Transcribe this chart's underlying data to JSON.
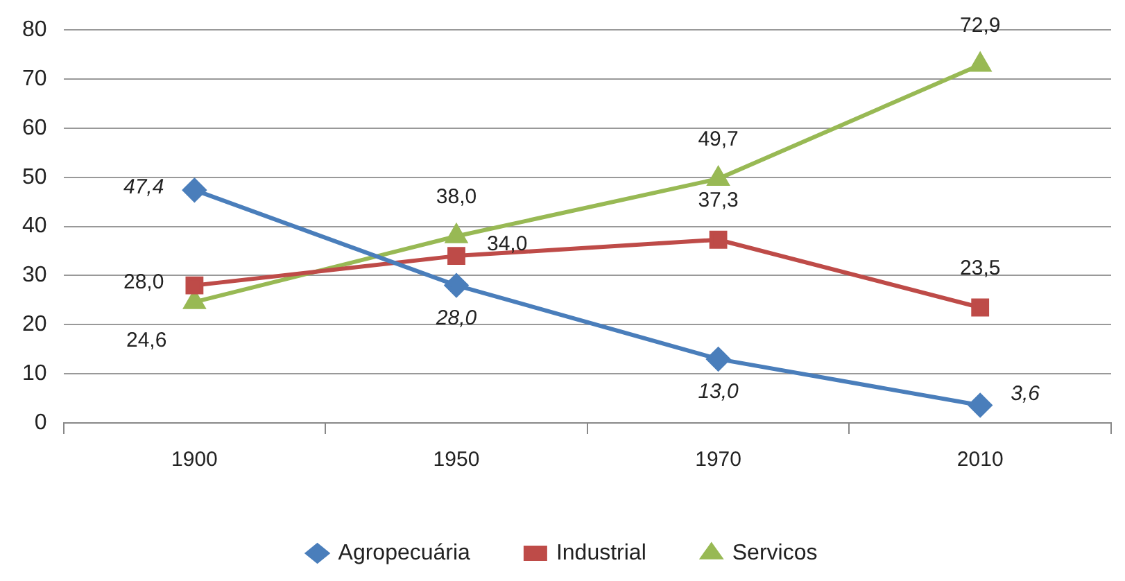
{
  "chart_data": {
    "type": "line",
    "categories": [
      "1900",
      "1950",
      "1970",
      "2010"
    ],
    "series": [
      {
        "name": "Agropecuária",
        "color": "#4a7ebb",
        "marker": "diamond",
        "values": [
          47.4,
          28.0,
          13.0,
          3.6
        ],
        "value_labels": [
          "47,4",
          "28,0",
          "13,0",
          "3,6"
        ]
      },
      {
        "name": "Industrial",
        "color": "#be4b48",
        "marker": "square",
        "values": [
          28.0,
          34.0,
          37.3,
          23.5
        ],
        "value_labels": [
          "28,0",
          "34,0",
          "37,3",
          "23,5"
        ]
      },
      {
        "name": "Servicos",
        "color": "#98b954",
        "marker": "triangle",
        "values": [
          24.6,
          38.0,
          49.7,
          72.9
        ],
        "value_labels": [
          "24,6",
          "38,0",
          "49,7",
          "72,9"
        ]
      }
    ],
    "ylim": [
      0,
      80
    ],
    "yticks": [
      0,
      10,
      20,
      30,
      40,
      50,
      60,
      70,
      80
    ],
    "grid": "y",
    "legend": "bottom",
    "line_style": "solid"
  }
}
